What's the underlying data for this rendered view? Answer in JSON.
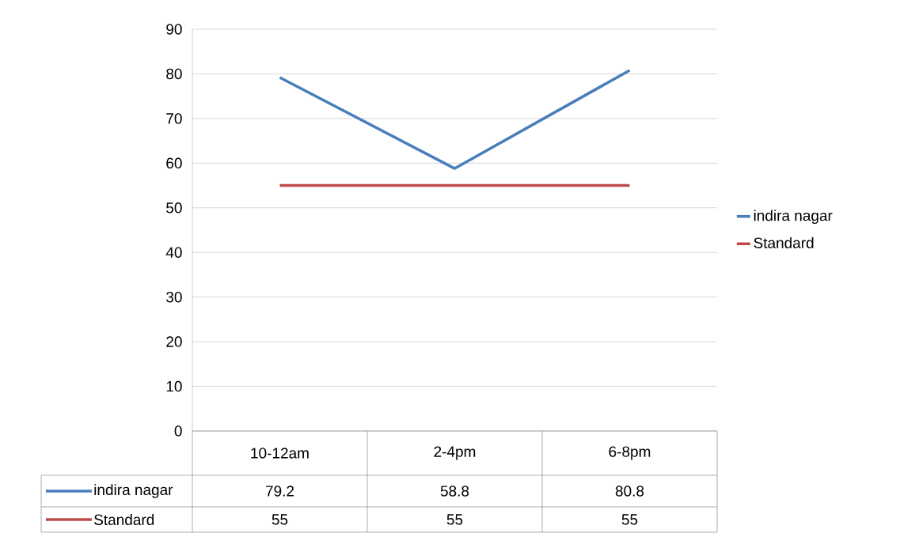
{
  "chart_data": {
    "type": "line",
    "categories": [
      "10-12am",
      "2-4pm",
      "6-8pm"
    ],
    "series": [
      {
        "name": "indira nagar",
        "color": "#4a7ebb",
        "values": [
          79.2,
          58.8,
          80.8
        ]
      },
      {
        "name": "Standard",
        "color": "#be4b48",
        "values": [
          55,
          55,
          55
        ]
      }
    ],
    "ylim": [
      0,
      90
    ],
    "yticks": [
      0,
      10,
      20,
      30,
      40,
      50,
      60,
      70,
      80,
      90
    ],
    "grid": "y",
    "legend": "right",
    "data_labels": true
  }
}
